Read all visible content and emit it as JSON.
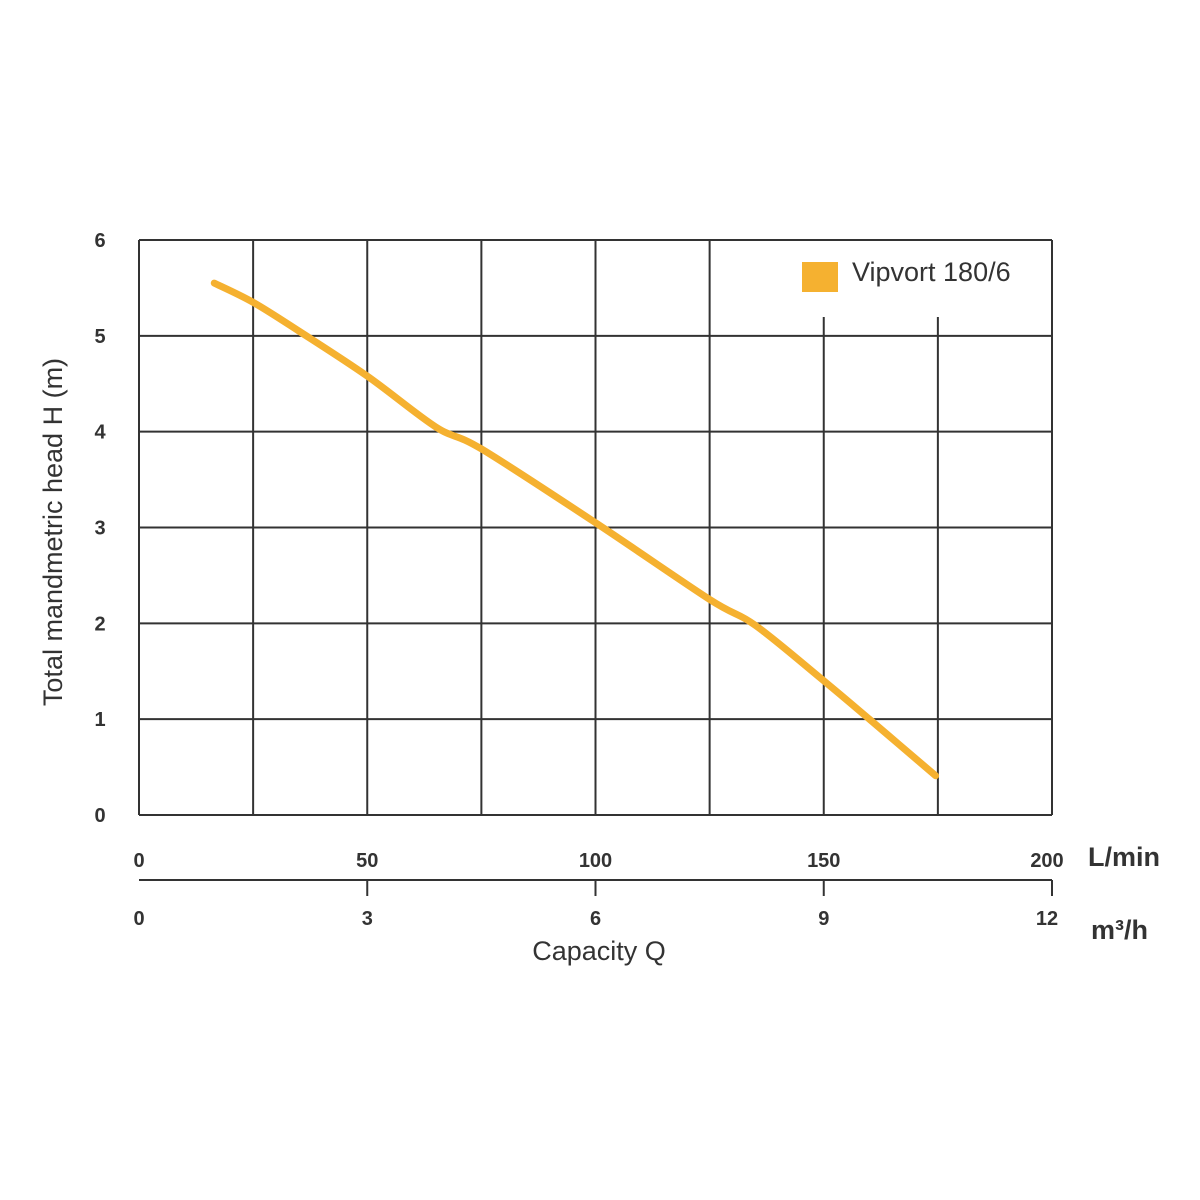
{
  "chart_data": {
    "type": "line",
    "ylabel": "Total mandmetric head H (m)",
    "xlabel": "Capacity Q",
    "ylim": [
      0,
      6
    ],
    "xlim": [
      0,
      200
    ],
    "y_ticks": [
      "0",
      "1",
      "2",
      "3",
      "4",
      "5",
      "6"
    ],
    "x_primary": {
      "unit": "L/min",
      "ticks": [
        "0",
        "50",
        "100",
        "150",
        "200"
      ],
      "tick_values": [
        0,
        50,
        100,
        150,
        200
      ]
    },
    "x_secondary": {
      "unit": "m³/h",
      "ticks": [
        "0",
        "3",
        "6",
        "9",
        "12"
      ],
      "tick_values": [
        0,
        50,
        100,
        150,
        200
      ]
    },
    "grid": true,
    "legend_position": "top-right",
    "series": [
      {
        "name": "Vipvort 180/6",
        "color": "#F5B130",
        "x": [
          16.5,
          25,
          35,
          50,
          65,
          75,
          100,
          125,
          135,
          150,
          160,
          174.5
        ],
        "y": [
          5.55,
          5.35,
          5.05,
          4.58,
          4.05,
          3.82,
          3.05,
          2.25,
          1.98,
          1.4,
          1.0,
          0.41
        ]
      }
    ]
  }
}
